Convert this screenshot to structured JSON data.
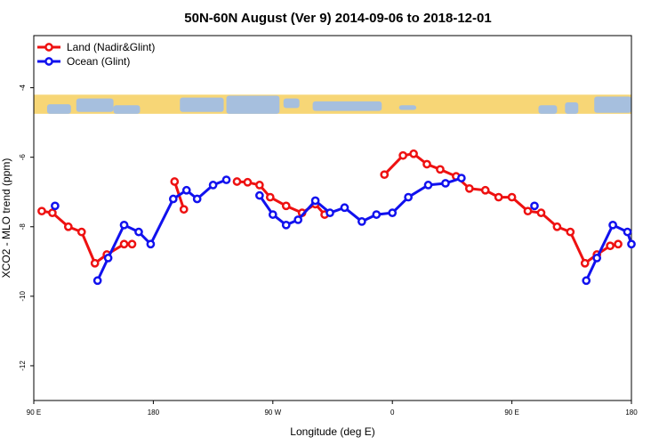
{
  "chart_data": {
    "type": "line",
    "title": "50N-60N August (Ver 9)   2014-09-06 to 2018-12-01",
    "xlabel": "Longitude (deg E)",
    "ylabel": "XCO2 - MLO trend (ppm)",
    "xlim": [
      90,
      540
    ],
    "ylim": [
      -13,
      -2.5
    ],
    "x_ticks": [
      {
        "value": 90,
        "label": "90 E"
      },
      {
        "value": 180,
        "label": "180"
      },
      {
        "value": 270,
        "label": "90 W"
      },
      {
        "value": 360,
        "label": "0"
      },
      {
        "value": 450,
        "label": "90 E"
      },
      {
        "value": 540,
        "label": "180"
      }
    ],
    "y_ticks": [
      {
        "value": -4,
        "label": "-4"
      },
      {
        "value": -6,
        "label": "-6"
      },
      {
        "value": -8,
        "label": "-8"
      },
      {
        "value": -10,
        "label": "-10"
      },
      {
        "value": -12,
        "label": "-12"
      }
    ],
    "map_band": {
      "y_top": -4.2,
      "y_bottom": -4.75,
      "land_color": "#f7d676",
      "ocean_color": "#a6bfde"
    },
    "legend": {
      "position": "top-left"
    },
    "series": [
      {
        "name": "Land (Nadir&Glint)",
        "color": "#ee1111",
        "segments": [
          [
            [
              96,
              -7.55
            ],
            [
              104,
              -7.6
            ],
            [
              116,
              -8.0
            ],
            [
              126,
              -8.15
            ],
            [
              136,
              -9.05
            ],
            [
              145,
              -8.8
            ],
            [
              158,
              -8.5
            ],
            [
              164,
              -8.5
            ]
          ],
          [
            [
              196,
              -6.7
            ],
            [
              203,
              -7.5
            ]
          ],
          [
            [
              243,
              -6.7
            ],
            [
              251,
              -6.72
            ],
            [
              260,
              -6.8
            ],
            [
              268,
              -7.15
            ],
            [
              280,
              -7.4
            ],
            [
              292,
              -7.6
            ],
            [
              302,
              -7.35
            ],
            [
              309,
              -7.65
            ]
          ],
          [
            [
              354,
              -6.5
            ],
            [
              368,
              -5.95
            ],
            [
              376,
              -5.9
            ],
            [
              386,
              -6.2
            ],
            [
              396,
              -6.35
            ],
            [
              408,
              -6.55
            ],
            [
              418,
              -6.9
            ],
            [
              430,
              -6.95
            ],
            [
              440,
              -7.15
            ],
            [
              450,
              -7.15
            ],
            [
              462,
              -7.55
            ],
            [
              472,
              -7.6
            ],
            [
              484,
              -8.0
            ],
            [
              494,
              -8.15
            ],
            [
              505,
              -9.05
            ],
            [
              514,
              -8.8
            ],
            [
              524,
              -8.55
            ],
            [
              530,
              -8.5
            ]
          ]
        ]
      },
      {
        "name": "Ocean (Glint)",
        "color": "#1111ee",
        "segments": [
          [
            [
              106,
              -7.4
            ]
          ],
          [
            [
              138,
              -9.55
            ],
            [
              146,
              -8.9
            ],
            [
              158,
              -7.95
            ],
            [
              169,
              -8.15
            ],
            [
              178,
              -8.5
            ],
            [
              195,
              -7.2
            ],
            [
              205,
              -6.95
            ],
            [
              213,
              -7.2
            ],
            [
              225,
              -6.8
            ],
            [
              235,
              -6.65
            ]
          ],
          [
            [
              260,
              -7.1
            ],
            [
              270,
              -7.65
            ],
            [
              280,
              -7.95
            ],
            [
              289,
              -7.8
            ],
            [
              302,
              -7.25
            ],
            [
              313,
              -7.6
            ],
            [
              324,
              -7.45
            ],
            [
              337,
              -7.85
            ],
            [
              348,
              -7.65
            ],
            [
              360,
              -7.6
            ],
            [
              372,
              -7.15
            ],
            [
              387,
              -6.8
            ],
            [
              400,
              -6.75
            ],
            [
              412,
              -6.6
            ]
          ],
          [
            [
              467,
              -7.4
            ]
          ],
          [
            [
              506,
              -9.55
            ],
            [
              514,
              -8.9
            ],
            [
              526,
              -7.95
            ],
            [
              537,
              -8.15
            ],
            [
              545,
              -8.5
            ]
          ]
        ]
      }
    ]
  }
}
